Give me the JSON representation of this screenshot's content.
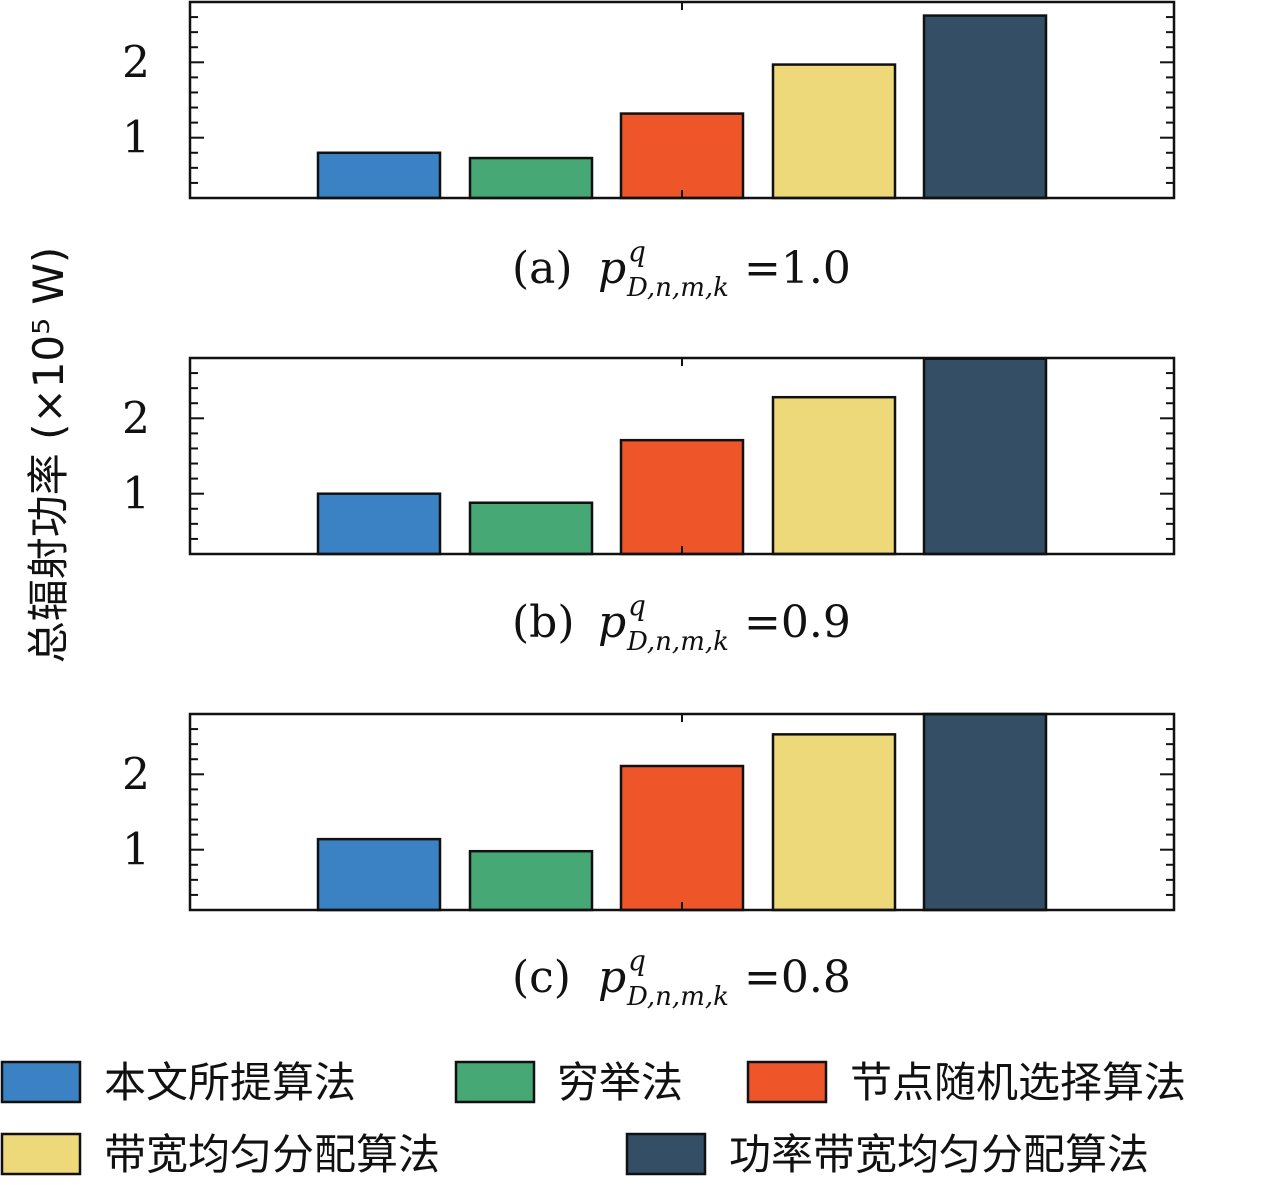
{
  "chart_data": {
    "type": "bar",
    "ylabel": "总辐射功率 (×10⁵ W)",
    "ticks": [
      "1",
      "2"
    ],
    "legend_position": "bottom",
    "legend": [
      {
        "name": "本文所提算法",
        "color": "#3a82c3"
      },
      {
        "name": "穷举法",
        "color": "#46a874"
      },
      {
        "name": "节点随机选择算法",
        "color": "#ee5529"
      },
      {
        "name": "带宽均匀分配算法",
        "color": "#edd87a"
      },
      {
        "name": "功率带宽均匀分配算法",
        "color": "#344e65"
      }
    ],
    "panels": [
      {
        "label": "(a)",
        "param": "p",
        "sup": "q",
        "sub": "D,n,m,k",
        "eq": "=1.0",
        "values": [
          0.8,
          0.73,
          1.32,
          1.97,
          2.62
        ],
        "ylim": [
          0.2,
          2.8
        ]
      },
      {
        "label": "(b)",
        "param": "p",
        "sup": "q",
        "sub": "D,n,m,k",
        "eq": "=0.9",
        "values": [
          1.0,
          0.88,
          1.71,
          2.28,
          2.79
        ],
        "ylim": [
          0.2,
          2.8
        ]
      },
      {
        "label": "(c)",
        "param": "p",
        "sup": "q",
        "sub": "D,n,m,k",
        "eq": "=0.8",
        "values": [
          1.14,
          0.98,
          2.11,
          2.53,
          2.9
        ],
        "ylim": [
          0.2,
          2.8
        ]
      }
    ]
  }
}
